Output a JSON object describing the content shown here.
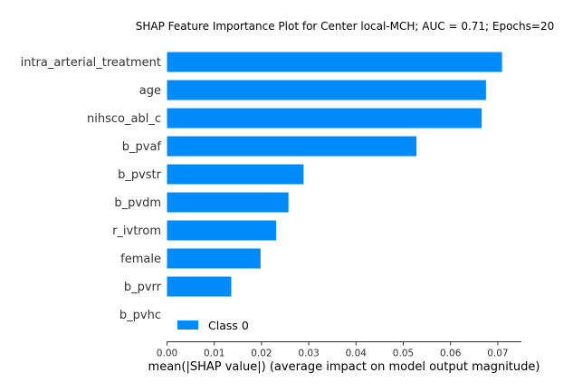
{
  "chart_data": {
    "type": "bar",
    "orientation": "horizontal",
    "title": "SHAP Feature Importance Plot for Center local-MCH; AUC = 0.71; Epochs=20",
    "xlabel": "mean(|SHAP value|) (average impact on model output magnitude)",
    "ylabel": "",
    "categories": [
      "intra_arterial_treatment",
      "age",
      "nihsco_abl_c",
      "b_pvaf",
      "b_pvstr",
      "b_pvdm",
      "r_ivtrom",
      "female",
      "b_pvrr",
      "b_pvhc"
    ],
    "series": [
      {
        "name": "Class 0",
        "color": "#008bfb",
        "values": [
          0.0709,
          0.0675,
          0.0666,
          0.0528,
          0.0289,
          0.0257,
          0.0231,
          0.0198,
          0.0136,
          0.0
        ]
      }
    ],
    "xlim": [
      0.0,
      0.075
    ],
    "xticks": [
      0.0,
      0.01,
      0.02,
      0.03,
      0.04,
      0.05,
      0.06,
      0.07
    ],
    "xtick_labels": [
      "0.00",
      "0.01",
      "0.02",
      "0.03",
      "0.04",
      "0.05",
      "0.06",
      "0.07"
    ],
    "grid": false,
    "legend_position": "lower-left"
  }
}
